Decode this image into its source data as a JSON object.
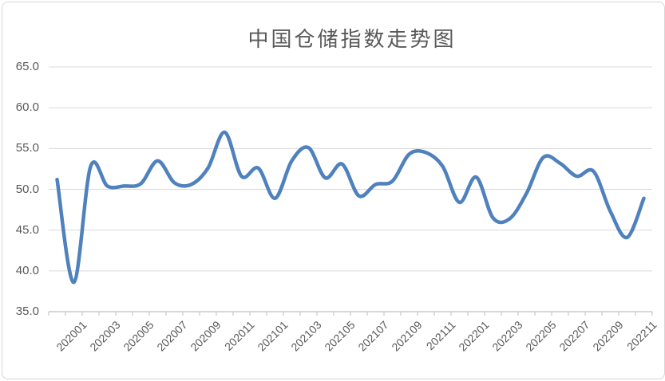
{
  "chart": {
    "title": "中国仓储指数走势图"
  },
  "chart_data": {
    "type": "line",
    "title": "中国仓储指数走势图",
    "series_name": "中国仓储指数",
    "categories": [
      "202001",
      "202002",
      "202003",
      "202004",
      "202005",
      "202006",
      "202007",
      "202008",
      "202009",
      "202010",
      "202011",
      "202012",
      "202101",
      "202102",
      "202103",
      "202104",
      "202105",
      "202106",
      "202107",
      "202108",
      "202109",
      "202110",
      "202111",
      "202112",
      "202201",
      "202202",
      "202203",
      "202204",
      "202205",
      "202206",
      "202207",
      "202208",
      "202209",
      "202210",
      "202211",
      "202212"
    ],
    "values": [
      51.2,
      38.6,
      52.8,
      50.4,
      50.4,
      50.7,
      53.5,
      50.8,
      50.6,
      52.6,
      57.0,
      51.6,
      52.6,
      48.9,
      53.5,
      55.1,
      51.4,
      53.1,
      49.2,
      50.6,
      51.0,
      54.3,
      54.5,
      52.8,
      48.4,
      51.5,
      46.5,
      46.4,
      49.5,
      53.9,
      53.2,
      51.6,
      52.2,
      47.3,
      44.1,
      48.9
    ],
    "x_tick_labels": [
      "202001",
      "202003",
      "202005",
      "202007",
      "202009",
      "202011",
      "202101",
      "202103",
      "202105",
      "202107",
      "202109",
      "202111",
      "202201",
      "202203",
      "202205",
      "202207",
      "202209",
      "202211"
    ],
    "y_tick_labels": [
      "65.0",
      "60.0",
      "55.0",
      "50.0",
      "45.0",
      "40.0",
      "35.0"
    ],
    "y_tick_values": [
      65,
      60,
      55,
      50,
      45,
      40,
      35
    ],
    "ylim": [
      35,
      65
    ],
    "xlabel": "",
    "ylabel": "",
    "grid": "horizontal",
    "legend": "none",
    "smooth": true,
    "line_color": "#4F81BD",
    "title_color": "#595959",
    "axis_text_color": "#595959",
    "gridline_color": "#D9D9D9",
    "axis_line_color": "#BFBFBF",
    "background_color": "#FFFFFF"
  }
}
